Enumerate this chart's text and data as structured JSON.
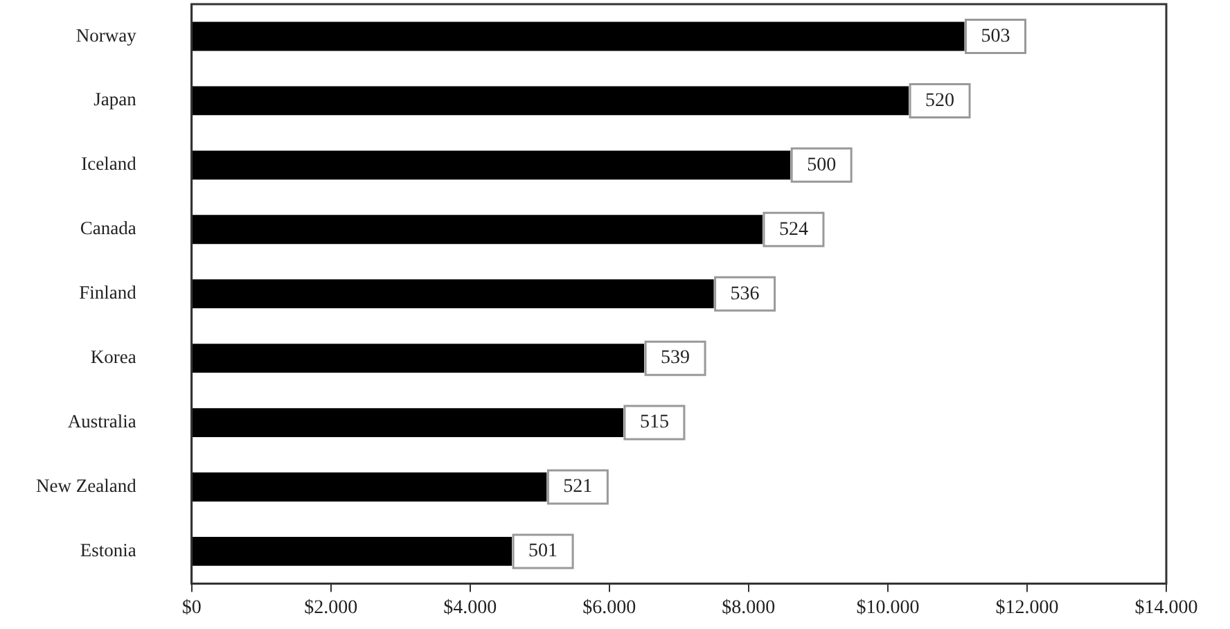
{
  "chart_data": {
    "type": "bar",
    "orientation": "horizontal",
    "categories": [
      "Norway",
      "Japan",
      "Iceland",
      "Canada",
      "Finland",
      "Korea",
      "Australia",
      "New Zealand",
      "Estonia"
    ],
    "values": [
      11100,
      10300,
      8600,
      8200,
      7500,
      6500,
      6200,
      5100,
      4600
    ],
    "annotations": [
      {
        "text": "503",
        "x": 11100,
        "y": "Norway"
      },
      {
        "text": "520",
        "x": 10300,
        "y": "Japan"
      },
      {
        "text": "500",
        "x": 8600,
        "y": "Iceland"
      },
      {
        "text": "524",
        "x": 8200,
        "y": "Canada"
      },
      {
        "text": "536",
        "x": 7500,
        "y": "Finland"
      },
      {
        "text": "539",
        "x": 6500,
        "y": "Korea"
      },
      {
        "text": "515",
        "x": 6200,
        "y": "Australia"
      },
      {
        "text": "521",
        "x": 5100,
        "y": "New Zealand"
      },
      {
        "text": "501",
        "x": 4600,
        "y": "Estonia"
      }
    ],
    "color": "#000000",
    "xlim": [
      0,
      14000
    ],
    "xticks": [
      {
        "value": 0,
        "label": "$0"
      },
      {
        "value": 2000,
        "label": "$2.000"
      },
      {
        "value": 4000,
        "label": "$4.000"
      },
      {
        "value": 6000,
        "label": "$6.000"
      },
      {
        "value": 8000,
        "label": "$8.000"
      },
      {
        "value": 10000,
        "label": "$10.000"
      },
      {
        "value": 12000,
        "label": "$12.000"
      },
      {
        "value": 14000,
        "label": "$14.000"
      }
    ],
    "grid": false,
    "legend": false
  }
}
